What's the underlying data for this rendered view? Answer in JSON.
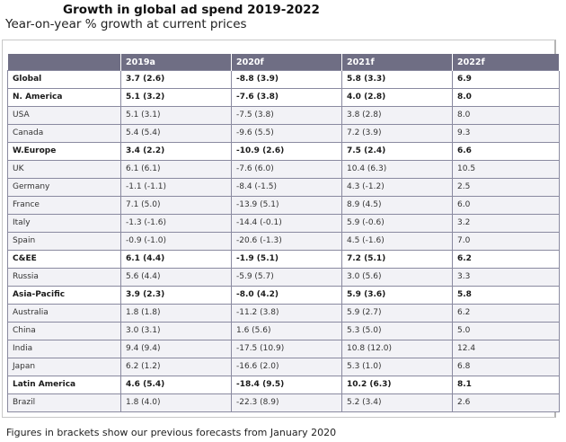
{
  "title": "Growth in global ad spend 2019-2022",
  "subtitle": "Year-on-year % growth at current prices",
  "table": {
    "headers": [
      "",
      "2019a",
      "2020f",
      "2021f",
      "2022f"
    ],
    "rows": [
      {
        "bold": true,
        "cells": [
          "Global",
          "3.7 (2.6)",
          "-8.8 (3.9)",
          "5.8 (3.3)",
          "6.9"
        ]
      },
      {
        "bold": true,
        "cells": [
          "N. America",
          "5.1 (3.2)",
          "-7.6 (3.8)",
          "4.0 (2.8)",
          "8.0"
        ]
      },
      {
        "bold": false,
        "cells": [
          "USA",
          "5.1 (3.1)",
          "-7.5 (3.8)",
          "3.8 (2.8)",
          "8.0"
        ]
      },
      {
        "bold": false,
        "cells": [
          "Canada",
          "5.4 (5.4)",
          "-9.6 (5.5)",
          "7.2 (3.9)",
          "9.3"
        ]
      },
      {
        "bold": true,
        "cells": [
          "W.Europe",
          "3.4 (2.2)",
          "-10.9 (2.6)",
          "7.5 (2.4)",
          "6.6"
        ]
      },
      {
        "bold": false,
        "cells": [
          "UK",
          "6.1 (6.1)",
          "-7.6 (6.0)",
          "10.4 (6.3)",
          "10.5"
        ]
      },
      {
        "bold": false,
        "cells": [
          "Germany",
          "-1.1 (-1.1)",
          "-8.4 (-1.5)",
          "4.3 (-1.2)",
          "2.5"
        ]
      },
      {
        "bold": false,
        "cells": [
          "France",
          "7.1 (5.0)",
          "-13.9 (5.1)",
          "8.9 (4.5)",
          "6.0"
        ]
      },
      {
        "bold": false,
        "cells": [
          "Italy",
          "-1.3 (-1.6)",
          "-14.4 (-0.1)",
          "5.9 (-0.6)",
          "3.2"
        ]
      },
      {
        "bold": false,
        "cells": [
          "Spain",
          "-0.9 (-1.0)",
          "-20.6 (-1.3)",
          "4.5 (-1.6)",
          "7.0"
        ]
      },
      {
        "bold": true,
        "cells": [
          "C&EE",
          "6.1 (4.4)",
          "-1.9 (5.1)",
          "7.2 (5.1)",
          "6.2"
        ]
      },
      {
        "bold": false,
        "cells": [
          "Russia",
          "5.6 (4.4)",
          "-5.9 (5.7)",
          "3.0 (5.6)",
          "3.3"
        ]
      },
      {
        "bold": true,
        "cells": [
          "Asia-Pacific",
          "3.9 (2.3)",
          "-8.0 (4.2)",
          "5.9 (3.6)",
          "5.8"
        ]
      },
      {
        "bold": false,
        "cells": [
          "Australia",
          "1.8 (1.8)",
          "-11.2 (3.8)",
          "5.9 (2.7)",
          "6.2"
        ]
      },
      {
        "bold": false,
        "cells": [
          "China",
          "3.0 (3.1)",
          "1.6 (5.6)",
          "5.3 (5.0)",
          "5.0"
        ]
      },
      {
        "bold": false,
        "cells": [
          "India",
          "9.4 (9.4)",
          "-17.5 (10.9)",
          "10.8 (12.0)",
          "12.4"
        ]
      },
      {
        "bold": false,
        "cells": [
          "Japan",
          "6.2 (1.2)",
          "-16.6 (2.0)",
          "5.3 (1.0)",
          "6.8"
        ]
      },
      {
        "bold": true,
        "cells": [
          "Latin America",
          "4.6 (5.4)",
          "-18.4 (9.5)",
          "10.2 (6.3)",
          "8.1"
        ]
      },
      {
        "bold": false,
        "cells": [
          "Brazil",
          "1.8 (4.0)",
          "-22.3 (8.9)",
          "5.2 (3.4)",
          "2.6"
        ]
      }
    ]
  },
  "footnote": "Figures in brackets show our previous forecasts from January 2020",
  "colors": {
    "header_bg": "#6f6e84",
    "row_alt_bg": "#f2f2f6",
    "border": "#8a8aa0"
  }
}
